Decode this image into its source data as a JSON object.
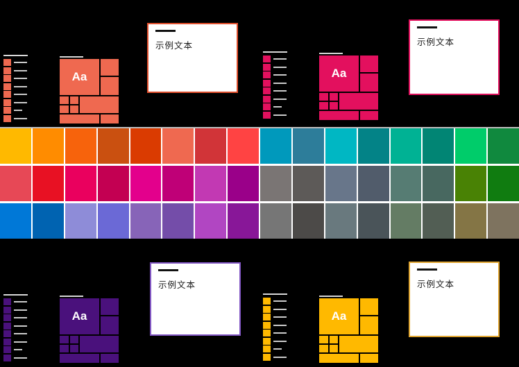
{
  "app": {
    "background": "#000000"
  },
  "palette": {
    "gap_color": "#ffffff",
    "rows": [
      [
        "#FFB900",
        "#FF8C00",
        "#F7630C",
        "#CA5010",
        "#DA3B01",
        "#EF6950",
        "#D13438",
        "#FF4343",
        "#0099BC",
        "#2D7D9A",
        "#00B7C3",
        "#038387",
        "#00B294",
        "#018574",
        "#00CC6A",
        "#10893E"
      ],
      [
        "#E74856",
        "#E81123",
        "#EA005E",
        "#C30052",
        "#E3008C",
        "#BF0077",
        "#C239B3",
        "#9A0089",
        "#7A7574",
        "#5D5A58",
        "#68768A",
        "#515C6B",
        "#567C73",
        "#486860",
        "#498205",
        "#107C10"
      ],
      [
        "#0078D7",
        "#0063B1",
        "#8E8CD8",
        "#6B69D6",
        "#8764B8",
        "#744DA9",
        "#B146C2",
        "#881798",
        "#767676",
        "#4C4A48",
        "#69797E",
        "#4A5459",
        "#647C64",
        "#525E54",
        "#847545",
        "#7E735F"
      ]
    ]
  },
  "preview": {
    "list_row_count": 8,
    "short_line_index": 6,
    "line_color": "#cccccc",
    "header_line_color": "#d9d9d9",
    "panel_background": "#ffffff",
    "panel_accent_line_color": "#111111",
    "text_color": "#1a1a1a"
  },
  "themes": [
    {
      "id": "salmon",
      "accent": "#EF6950",
      "window_border": "#E4512F",
      "tile_label": "Aa",
      "sample_text": "示例文本"
    },
    {
      "id": "pink",
      "accent": "#E3105E",
      "window_border": "#E3105E",
      "tile_label": "Aa",
      "sample_text": "示例文本"
    },
    {
      "id": "purple",
      "accent": "#4A117C",
      "window_border": "#8257C4",
      "tile_label": "Aa",
      "sample_text": "示例文本"
    },
    {
      "id": "gold",
      "accent": "#FFB900",
      "window_border": "#DFA42F",
      "tile_label": "Aa",
      "sample_text": "示例文本"
    }
  ]
}
